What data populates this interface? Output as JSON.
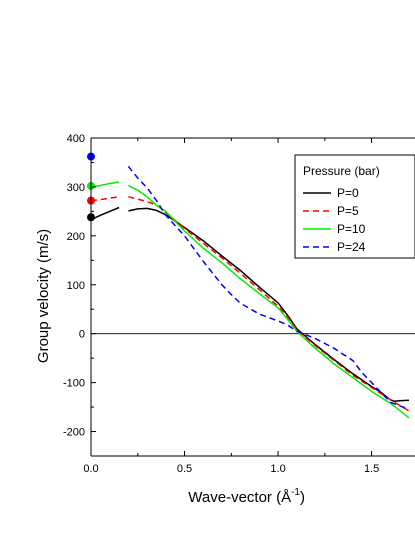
{
  "chart_data": {
    "type": "line",
    "title": "",
    "xlabel": "Wave-vector  (Å",
    "xlabel_sup": "-1",
    "xlabel_close": ")",
    "ylabel": "Group velocity (m/s)",
    "xlim": [
      0.0,
      1.7
    ],
    "ylim": [
      -250,
      400
    ],
    "xticks": [
      0.0,
      0.5,
      1.0,
      1.5
    ],
    "xtick_labels": [
      "0.0",
      "0.5",
      "1.0",
      "1.5"
    ],
    "yticks": [
      -200,
      -100,
      0,
      100,
      200,
      300,
      400
    ],
    "ytick_labels": [
      "-200",
      "-100",
      "0",
      "100",
      "200",
      "300",
      "400"
    ],
    "zero_line": true,
    "grid": false,
    "legend": {
      "title": "Pressure (bar)",
      "placement": "top-right"
    },
    "series": [
      {
        "name": "P=0",
        "color": "#000000",
        "dash": "solid",
        "marker": {
          "x": 0.0,
          "y": 238
        },
        "segments": [
          [
            [
              0.0,
              233
            ],
            [
              0.05,
              242
            ],
            [
              0.1,
              250
            ],
            [
              0.15,
              258
            ]
          ],
          [
            [
              0.2,
              251
            ],
            [
              0.25,
              255
            ],
            [
              0.3,
              256
            ],
            [
              0.35,
              252
            ],
            [
              0.4,
              243
            ],
            [
              0.5,
              217
            ],
            [
              0.6,
              190
            ],
            [
              0.7,
              159
            ],
            [
              0.8,
              129
            ],
            [
              0.9,
              95
            ],
            [
              1.0,
              63
            ],
            [
              1.05,
              38
            ],
            [
              1.1,
              10
            ],
            [
              1.2,
              -23
            ],
            [
              1.3,
              -53
            ],
            [
              1.4,
              -82
            ],
            [
              1.5,
              -108
            ],
            [
              1.55,
              -120
            ],
            [
              1.6,
              -135
            ],
            [
              1.62,
              -138
            ],
            [
              1.65,
              -137
            ],
            [
              1.7,
              -136
            ]
          ]
        ]
      },
      {
        "name": "P=5",
        "color": "#ff0000",
        "dash": "dashed",
        "marker": {
          "x": 0.0,
          "y": 272
        },
        "segments": [
          [
            [
              0.0,
              272
            ],
            [
              0.05,
              274
            ],
            [
              0.1,
              277
            ],
            [
              0.15,
              280
            ]
          ],
          [
            [
              0.2,
              280
            ],
            [
              0.25,
              275
            ],
            [
              0.3,
              270
            ],
            [
              0.35,
              263
            ],
            [
              0.4,
              248
            ],
            [
              0.5,
              215
            ],
            [
              0.6,
              185
            ],
            [
              0.7,
              155
            ],
            [
              0.8,
              123
            ],
            [
              0.9,
              90
            ],
            [
              1.0,
              56
            ],
            [
              1.05,
              35
            ],
            [
              1.1,
              8
            ],
            [
              1.2,
              -25
            ],
            [
              1.3,
              -55
            ],
            [
              1.4,
              -85
            ],
            [
              1.5,
              -110
            ],
            [
              1.6,
              -135
            ],
            [
              1.7,
              -158
            ]
          ]
        ]
      },
      {
        "name": "P=10",
        "color": "#00ee00",
        "dash": "solid",
        "marker": {
          "x": 0.0,
          "y": 302
        },
        "segments": [
          [
            [
              0.0,
              300
            ],
            [
              0.05,
              303
            ],
            [
              0.1,
              307
            ],
            [
              0.15,
              310
            ]
          ],
          [
            [
              0.2,
              303
            ],
            [
              0.25,
              293
            ],
            [
              0.3,
              280
            ],
            [
              0.35,
              262
            ],
            [
              0.4,
              250
            ],
            [
              0.5,
              210
            ],
            [
              0.6,
              175
            ],
            [
              0.7,
              145
            ],
            [
              0.8,
              112
            ],
            [
              0.9,
              82
            ],
            [
              1.0,
              53
            ],
            [
              1.05,
              30
            ],
            [
              1.1,
              5
            ],
            [
              1.2,
              -30
            ],
            [
              1.3,
              -62
            ],
            [
              1.4,
              -90
            ],
            [
              1.5,
              -118
            ],
            [
              1.6,
              -142
            ],
            [
              1.7,
              -172
            ]
          ]
        ]
      },
      {
        "name": "P=24",
        "color": "#0000ff",
        "dash": "dashed",
        "marker": {
          "x": 0.0,
          "y": 362
        },
        "segments": [
          [
            [
              0.2,
              342
            ],
            [
              0.25,
              318
            ],
            [
              0.3,
              298
            ],
            [
              0.35,
              272
            ],
            [
              0.4,
              242
            ],
            [
              0.5,
              200
            ],
            [
              0.6,
              148
            ],
            [
              0.7,
              100
            ],
            [
              0.75,
              80
            ],
            [
              0.8,
              62
            ],
            [
              0.9,
              40
            ],
            [
              1.0,
              26
            ],
            [
              1.05,
              18
            ],
            [
              1.1,
              5
            ],
            [
              1.2,
              -10
            ],
            [
              1.3,
              -30
            ],
            [
              1.4,
              -55
            ],
            [
              1.45,
              -80
            ],
            [
              1.5,
              -100
            ],
            [
              1.6,
              -140
            ],
            [
              1.7,
              -155
            ]
          ]
        ]
      }
    ]
  }
}
